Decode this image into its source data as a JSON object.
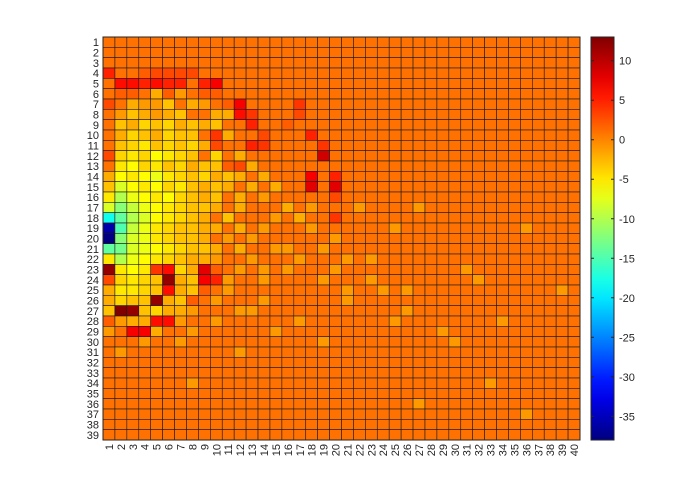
{
  "chart_data": {
    "type": "heatmap",
    "title": "",
    "xlabel": "",
    "ylabel": "",
    "x_categories": [
      "1",
      "2",
      "3",
      "4",
      "5",
      "6",
      "7",
      "8",
      "9",
      "10",
      "11",
      "12",
      "13",
      "14",
      "15",
      "16",
      "17",
      "18",
      "19",
      "20",
      "21",
      "22",
      "23",
      "24",
      "25",
      "26",
      "27",
      "28",
      "29",
      "30",
      "31",
      "32",
      "33",
      "34",
      "35",
      "36",
      "37",
      "38",
      "39",
      "40"
    ],
    "y_categories": [
      "1",
      "2",
      "3",
      "4",
      "5",
      "6",
      "7",
      "8",
      "9",
      "10",
      "11",
      "12",
      "13",
      "14",
      "15",
      "16",
      "17",
      "18",
      "19",
      "20",
      "21",
      "22",
      "23",
      "24",
      "25",
      "26",
      "27",
      "28",
      "29",
      "30",
      "31",
      "32",
      "33",
      "34",
      "35",
      "36",
      "37",
      "38",
      "39"
    ],
    "colorbar": {
      "range": [
        -38,
        13
      ],
      "ticks": [
        10,
        5,
        0,
        -5,
        -10,
        -15,
        -20,
        -25,
        -30,
        -35
      ],
      "colormap": "jet"
    },
    "baseline_value": 1,
    "cells": [
      [
        4,
        1,
        5
      ],
      [
        4,
        4,
        2
      ],
      [
        4,
        5,
        3
      ],
      [
        4,
        6,
        3
      ],
      [
        4,
        7,
        3
      ],
      [
        4,
        8,
        3
      ],
      [
        5,
        2,
        6
      ],
      [
        5,
        3,
        6
      ],
      [
        5,
        4,
        5
      ],
      [
        5,
        5,
        6
      ],
      [
        5,
        6,
        5
      ],
      [
        5,
        7,
        5
      ],
      [
        5,
        9,
        5
      ],
      [
        5,
        10,
        7
      ],
      [
        6,
        2,
        2
      ],
      [
        6,
        3,
        2
      ],
      [
        6,
        5,
        -2
      ],
      [
        6,
        6,
        2
      ],
      [
        6,
        7,
        -1
      ],
      [
        6,
        9,
        2
      ],
      [
        6,
        10,
        2
      ],
      [
        7,
        1,
        3
      ],
      [
        7,
        3,
        -2
      ],
      [
        7,
        4,
        -1
      ],
      [
        7,
        5,
        -1
      ],
      [
        7,
        6,
        -3
      ],
      [
        7,
        8,
        -2
      ],
      [
        7,
        9,
        -1
      ],
      [
        7,
        11,
        2
      ],
      [
        7,
        12,
        7
      ],
      [
        7,
        17,
        4
      ],
      [
        8,
        2,
        -1
      ],
      [
        8,
        3,
        -3
      ],
      [
        8,
        4,
        -2
      ],
      [
        8,
        5,
        -1
      ],
      [
        8,
        6,
        -2
      ],
      [
        8,
        7,
        -3
      ],
      [
        8,
        10,
        -2
      ],
      [
        8,
        11,
        -2
      ],
      [
        8,
        12,
        6
      ],
      [
        8,
        13,
        4
      ],
      [
        8,
        17,
        3
      ],
      [
        9,
        2,
        -3
      ],
      [
        9,
        3,
        -2
      ],
      [
        9,
        4,
        -4
      ],
      [
        9,
        5,
        -3
      ],
      [
        9,
        6,
        -4
      ],
      [
        9,
        7,
        -2
      ],
      [
        9,
        8,
        -3
      ],
      [
        9,
        9,
        -2
      ],
      [
        9,
        10,
        -3
      ],
      [
        9,
        13,
        5
      ],
      [
        9,
        16,
        2
      ],
      [
        10,
        2,
        -2
      ],
      [
        10,
        3,
        -4
      ],
      [
        10,
        4,
        -3
      ],
      [
        10,
        5,
        -2
      ],
      [
        10,
        6,
        -4
      ],
      [
        10,
        7,
        -3
      ],
      [
        10,
        8,
        -3
      ],
      [
        10,
        10,
        4
      ],
      [
        10,
        11,
        -2
      ],
      [
        10,
        14,
        3
      ],
      [
        10,
        18,
        5
      ],
      [
        11,
        2,
        -3
      ],
      [
        11,
        3,
        -4
      ],
      [
        11,
        4,
        -5
      ],
      [
        11,
        5,
        -3
      ],
      [
        11,
        6,
        -4
      ],
      [
        11,
        7,
        -3
      ],
      [
        11,
        8,
        -4
      ],
      [
        11,
        9,
        -2
      ],
      [
        11,
        10,
        3
      ],
      [
        11,
        13,
        5
      ],
      [
        11,
        14,
        4
      ],
      [
        11,
        19,
        4
      ],
      [
        12,
        1,
        3
      ],
      [
        12,
        2,
        -4
      ],
      [
        12,
        3,
        -5
      ],
      [
        12,
        4,
        -4
      ],
      [
        12,
        5,
        -6
      ],
      [
        12,
        6,
        -5
      ],
      [
        12,
        7,
        -4
      ],
      [
        12,
        8,
        -3
      ],
      [
        12,
        10,
        -4
      ],
      [
        12,
        12,
        -2
      ],
      [
        12,
        19,
        9
      ],
      [
        13,
        2,
        -5
      ],
      [
        13,
        3,
        -6
      ],
      [
        13,
        4,
        -4
      ],
      [
        13,
        5,
        -5
      ],
      [
        13,
        6,
        -3
      ],
      [
        13,
        7,
        -4
      ],
      [
        13,
        8,
        -2
      ],
      [
        13,
        9,
        -3
      ],
      [
        13,
        10,
        -3
      ],
      [
        13,
        11,
        2
      ],
      [
        13,
        12,
        3
      ],
      [
        13,
        13,
        -2
      ],
      [
        14,
        1,
        -2
      ],
      [
        14,
        2,
        -6
      ],
      [
        14,
        3,
        -5
      ],
      [
        14,
        4,
        -6
      ],
      [
        14,
        5,
        -7
      ],
      [
        14,
        6,
        -5
      ],
      [
        14,
        7,
        -4
      ],
      [
        14,
        8,
        -3
      ],
      [
        14,
        9,
        -4
      ],
      [
        14,
        10,
        -2
      ],
      [
        14,
        11,
        -3
      ],
      [
        14,
        12,
        -2
      ],
      [
        14,
        14,
        -2
      ],
      [
        14,
        18,
        7
      ],
      [
        14,
        20,
        5
      ],
      [
        15,
        1,
        -3
      ],
      [
        15,
        2,
        -8
      ],
      [
        15,
        3,
        -6
      ],
      [
        15,
        4,
        -5
      ],
      [
        15,
        5,
        -6
      ],
      [
        15,
        6,
        -4
      ],
      [
        15,
        7,
        -5
      ],
      [
        15,
        8,
        -3
      ],
      [
        15,
        9,
        -2
      ],
      [
        15,
        10,
        -3
      ],
      [
        15,
        11,
        -2
      ],
      [
        15,
        13,
        -2
      ],
      [
        15,
        15,
        -2
      ],
      [
        15,
        18,
        8
      ],
      [
        15,
        20,
        8
      ],
      [
        16,
        1,
        -5
      ],
      [
        16,
        2,
        -10
      ],
      [
        16,
        3,
        -7
      ],
      [
        16,
        4,
        -6
      ],
      [
        16,
        5,
        -5
      ],
      [
        16,
        6,
        -6
      ],
      [
        16,
        7,
        -4
      ],
      [
        16,
        8,
        -3
      ],
      [
        16,
        9,
        -2
      ],
      [
        16,
        10,
        -3
      ],
      [
        16,
        12,
        -2
      ],
      [
        16,
        14,
        -1
      ],
      [
        16,
        20,
        3
      ],
      [
        17,
        1,
        -8
      ],
      [
        17,
        2,
        -12
      ],
      [
        17,
        3,
        -9
      ],
      [
        17,
        4,
        -7
      ],
      [
        17,
        5,
        -6
      ],
      [
        17,
        6,
        -5
      ],
      [
        17,
        7,
        -4
      ],
      [
        17,
        8,
        -3
      ],
      [
        17,
        9,
        -3
      ],
      [
        17,
        10,
        -2
      ],
      [
        17,
        12,
        -2
      ],
      [
        17,
        16,
        -2
      ],
      [
        17,
        18,
        -1
      ],
      [
        17,
        22,
        -1
      ],
      [
        17,
        27,
        -1
      ],
      [
        18,
        1,
        -18
      ],
      [
        18,
        2,
        -14
      ],
      [
        18,
        3,
        -10
      ],
      [
        18,
        4,
        -8
      ],
      [
        18,
        5,
        -6
      ],
      [
        18,
        6,
        -5
      ],
      [
        18,
        7,
        -4
      ],
      [
        18,
        8,
        -3
      ],
      [
        18,
        9,
        -2
      ],
      [
        18,
        11,
        -3
      ],
      [
        18,
        15,
        -1
      ],
      [
        18,
        17,
        -2
      ],
      [
        18,
        20,
        4
      ],
      [
        19,
        1,
        -36
      ],
      [
        19,
        2,
        -15
      ],
      [
        19,
        3,
        -9
      ],
      [
        19,
        4,
        -7
      ],
      [
        19,
        5,
        -5
      ],
      [
        19,
        6,
        -4
      ],
      [
        19,
        7,
        -3
      ],
      [
        19,
        8,
        -3
      ],
      [
        19,
        9,
        -2
      ],
      [
        19,
        10,
        -2
      ],
      [
        19,
        12,
        -2
      ],
      [
        19,
        14,
        -1
      ],
      [
        19,
        18,
        -1
      ],
      [
        19,
        25,
        -1
      ],
      [
        19,
        36,
        -1
      ],
      [
        20,
        1,
        -38
      ],
      [
        20,
        2,
        -12
      ],
      [
        20,
        3,
        -8
      ],
      [
        20,
        4,
        -7
      ],
      [
        20,
        5,
        -5
      ],
      [
        20,
        6,
        -4
      ],
      [
        20,
        7,
        -3
      ],
      [
        20,
        8,
        -3
      ],
      [
        20,
        9,
        -2
      ],
      [
        20,
        11,
        -1
      ],
      [
        20,
        13,
        -1
      ],
      [
        20,
        20,
        -1
      ],
      [
        21,
        1,
        -14
      ],
      [
        21,
        2,
        -13
      ],
      [
        21,
        3,
        -8
      ],
      [
        21,
        4,
        -7
      ],
      [
        21,
        5,
        -6
      ],
      [
        21,
        6,
        -5
      ],
      [
        21,
        7,
        -4
      ],
      [
        21,
        8,
        -3
      ],
      [
        21,
        9,
        -3
      ],
      [
        21,
        10,
        -2
      ],
      [
        21,
        12,
        -2
      ],
      [
        21,
        15,
        -1
      ],
      [
        21,
        16,
        -1
      ],
      [
        21,
        19,
        -1
      ],
      [
        22,
        1,
        -5
      ],
      [
        22,
        2,
        -10
      ],
      [
        22,
        3,
        -7
      ],
      [
        22,
        4,
        -6
      ],
      [
        22,
        5,
        -5
      ],
      [
        22,
        6,
        -4
      ],
      [
        22,
        7,
        -3
      ],
      [
        22,
        8,
        -2
      ],
      [
        22,
        9,
        -2
      ],
      [
        22,
        10,
        -1
      ],
      [
        22,
        13,
        -1
      ],
      [
        22,
        17,
        -1
      ],
      [
        22,
        21,
        -1
      ],
      [
        22,
        23,
        -1
      ],
      [
        23,
        1,
        12
      ],
      [
        23,
        2,
        -5
      ],
      [
        23,
        3,
        -6
      ],
      [
        23,
        4,
        -5
      ],
      [
        23,
        5,
        4
      ],
      [
        23,
        6,
        6
      ],
      [
        23,
        7,
        -4
      ],
      [
        23,
        8,
        -2
      ],
      [
        23,
        9,
        8
      ],
      [
        23,
        10,
        2
      ],
      [
        23,
        12,
        -1
      ],
      [
        23,
        14,
        -1
      ],
      [
        23,
        16,
        -1
      ],
      [
        23,
        20,
        -1
      ],
      [
        23,
        31,
        -1
      ],
      [
        24,
        1,
        3
      ],
      [
        24,
        2,
        -4
      ],
      [
        24,
        3,
        -5
      ],
      [
        24,
        4,
        -4
      ],
      [
        24,
        5,
        -3
      ],
      [
        24,
        6,
        12
      ],
      [
        24,
        7,
        -2
      ],
      [
        24,
        8,
        -3
      ],
      [
        24,
        9,
        7
      ],
      [
        24,
        10,
        5
      ],
      [
        24,
        11,
        -1
      ],
      [
        24,
        14,
        -1
      ],
      [
        24,
        19,
        -1
      ],
      [
        24,
        23,
        -1
      ],
      [
        24,
        32,
        -1
      ],
      [
        25,
        1,
        -2
      ],
      [
        25,
        2,
        -5
      ],
      [
        25,
        3,
        -5
      ],
      [
        25,
        4,
        -4
      ],
      [
        25,
        5,
        -3
      ],
      [
        25,
        6,
        6
      ],
      [
        25,
        7,
        -2
      ],
      [
        25,
        8,
        -3
      ],
      [
        25,
        9,
        2
      ],
      [
        25,
        11,
        -1
      ],
      [
        25,
        21,
        -1
      ],
      [
        25,
        24,
        -1
      ],
      [
        25,
        26,
        -1
      ],
      [
        25,
        39,
        -1
      ],
      [
        26,
        1,
        -2
      ],
      [
        26,
        2,
        -4
      ],
      [
        26,
        3,
        -3
      ],
      [
        26,
        4,
        -3
      ],
      [
        26,
        5,
        12
      ],
      [
        26,
        6,
        -2
      ],
      [
        26,
        7,
        -3
      ],
      [
        26,
        8,
        2
      ],
      [
        26,
        10,
        -1
      ],
      [
        26,
        14,
        -1
      ],
      [
        26,
        21,
        -1
      ],
      [
        27,
        1,
        -3
      ],
      [
        27,
        2,
        13
      ],
      [
        27,
        3,
        12
      ],
      [
        27,
        4,
        -3
      ],
      [
        27,
        5,
        -4
      ],
      [
        27,
        6,
        -2
      ],
      [
        27,
        7,
        -2
      ],
      [
        27,
        8,
        -1
      ],
      [
        27,
        12,
        -1
      ],
      [
        27,
        13,
        -1
      ],
      [
        27,
        26,
        -1
      ],
      [
        28,
        1,
        2
      ],
      [
        28,
        2,
        -1
      ],
      [
        28,
        3,
        -2
      ],
      [
        28,
        4,
        -2
      ],
      [
        28,
        5,
        6
      ],
      [
        28,
        6,
        6
      ],
      [
        28,
        7,
        -1
      ],
      [
        28,
        10,
        -1
      ],
      [
        28,
        17,
        -1
      ],
      [
        28,
        25,
        -1
      ],
      [
        28,
        34,
        -1
      ],
      [
        29,
        1,
        -1
      ],
      [
        29,
        3,
        7
      ],
      [
        29,
        4,
        7
      ],
      [
        29,
        5,
        -2
      ],
      [
        29,
        8,
        -1
      ],
      [
        29,
        15,
        -1
      ],
      [
        29,
        29,
        -1
      ],
      [
        30,
        4,
        -1
      ],
      [
        30,
        7,
        -1
      ],
      [
        30,
        19,
        -1
      ],
      [
        30,
        30,
        -1
      ],
      [
        31,
        2,
        -1
      ],
      [
        31,
        12,
        -1
      ],
      [
        34,
        8,
        -1
      ],
      [
        34,
        33,
        -1
      ],
      [
        36,
        27,
        -1
      ],
      [
        37,
        36,
        -1
      ]
    ]
  }
}
